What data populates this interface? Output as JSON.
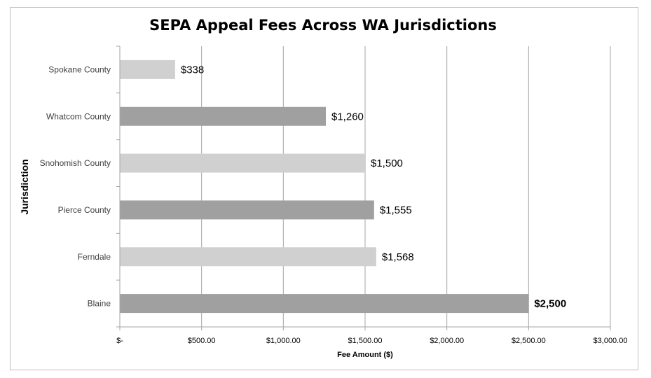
{
  "chart_data": {
    "type": "bar",
    "orientation": "horizontal",
    "title": "SEPA Appeal Fees Across WA Jurisdictions",
    "xlabel": "Fee Amount ($)",
    "ylabel": "Jurisdiction",
    "categories": [
      "Spokane County",
      "Whatcom County",
      "Snohomish County",
      "Pierce County",
      "Ferndale",
      "Blaine"
    ],
    "values": [
      338,
      1260,
      1500,
      1555,
      1568,
      2500
    ],
    "data_labels": [
      "$338",
      "$1,260",
      "$1,500",
      "$1,555",
      "$1,568",
      "$2,500"
    ],
    "bold_labels": [
      false,
      false,
      false,
      false,
      false,
      true
    ],
    "bar_colors": [
      "#d0d0d0",
      "#a0a0a0",
      "#d0d0d0",
      "#a0a0a0",
      "#d0d0d0",
      "#a0a0a0"
    ],
    "xlim": [
      0,
      3000
    ],
    "xticks": [
      0,
      500,
      1000,
      1500,
      2000,
      2500,
      3000
    ],
    "xtick_labels": [
      "$-",
      "$500.00",
      "$1,000.00",
      "$1,500.00",
      "$2,000.00",
      "$2,500.00",
      "$3,000.00"
    ],
    "grid": true,
    "legend": "none"
  },
  "colors": {
    "grid": "#a6a6a6",
    "axis": "#a6a6a6",
    "frame": "#bfbfbf"
  }
}
